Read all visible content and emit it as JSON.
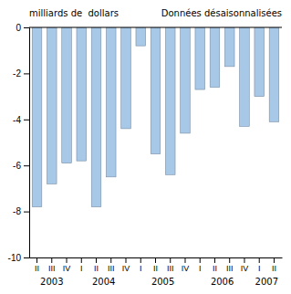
{
  "chart_data": {
    "type": "bar",
    "ylabel": "milliards de  dollars",
    "annotations": [
      "Données désaisonnalisées"
    ],
    "categories": [
      "II",
      "III",
      "IV",
      "I",
      "II",
      "III",
      "IV",
      "I",
      "II",
      "III",
      "IV",
      "I",
      "II",
      "III",
      "IV",
      "I",
      "II"
    ],
    "category_groups": [
      "2003",
      "2003",
      "2003",
      "2004",
      "2004",
      "2004",
      "2004",
      "2005",
      "2005",
      "2005",
      "2005",
      "2006",
      "2006",
      "2006",
      "2006",
      "2007",
      "2007"
    ],
    "values": [
      -7.8,
      -6.8,
      -5.9,
      -5.8,
      -7.8,
      -6.5,
      -4.4,
      -0.8,
      -5.5,
      -6.4,
      -4.6,
      -2.7,
      -2.6,
      -1.7,
      -4.3,
      -3.0,
      -4.1
    ],
    "color": "#a8c8e8",
    "ylim": [
      -10,
      0
    ],
    "yticks": [
      0,
      -2,
      -4,
      -6,
      -8,
      -10
    ],
    "grid": false
  }
}
